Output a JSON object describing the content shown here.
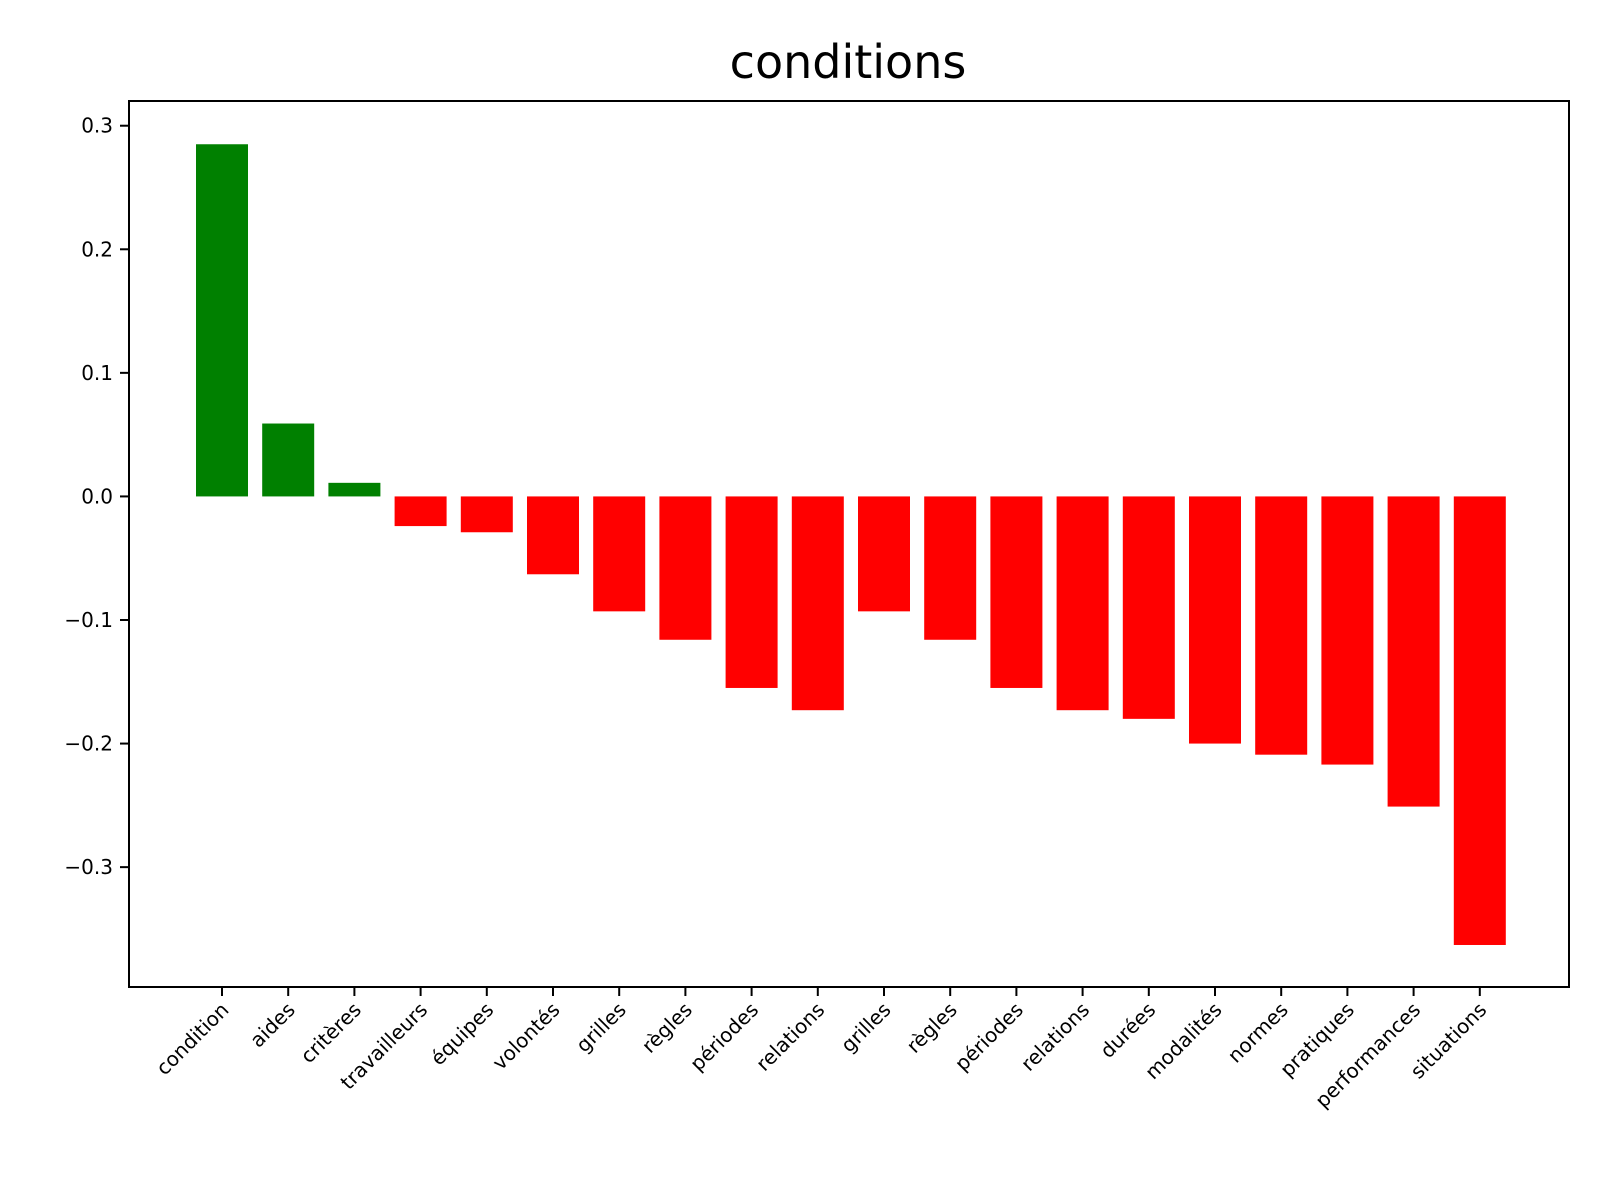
{
  "chart_data": {
    "type": "bar",
    "title": "conditions",
    "xlabel": "",
    "ylabel": "",
    "categories": [
      "condition",
      "aides",
      "critères",
      "travailleurs",
      "équipes",
      "volontés",
      "grilles",
      "règles",
      "périodes",
      "relations",
      "grilles",
      "règles",
      "périodes",
      "relations",
      "durées",
      "modalités",
      "normes",
      "pratiques",
      "performances",
      "situations"
    ],
    "values": [
      0.285,
      0.059,
      0.011,
      -0.024,
      -0.029,
      -0.063,
      -0.093,
      -0.116,
      -0.155,
      -0.173,
      -0.093,
      -0.116,
      -0.155,
      -0.173,
      -0.18,
      -0.2,
      -0.209,
      -0.217,
      -0.251,
      -0.363
    ],
    "ylim": [
      -0.397,
      0.32
    ],
    "yticks": [
      0.3,
      0.2,
      0.1,
      0.0,
      -0.1,
      -0.2,
      -0.3
    ],
    "ytick_labels": [
      "0.3",
      "0.2",
      "0.1",
      "0.0",
      "−0.1",
      "−0.2",
      "−0.3"
    ],
    "colors": {
      "positive": "#008000",
      "negative": "#ff0000",
      "axis": "#000000"
    },
    "grid": false,
    "legend": "none",
    "x_tick_rotation_deg": 45
  }
}
